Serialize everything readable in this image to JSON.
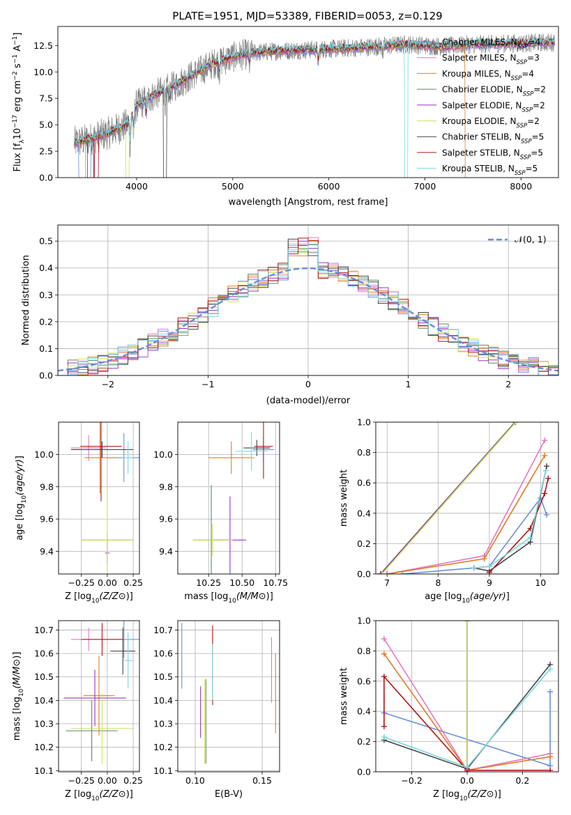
{
  "figure_title": "PLATE=1951, MJD=53389, FIBERID=0053, z=0.129",
  "colors": {
    "Chabrier MILES": "#6a8fd8",
    "Salpeter MILES": "#e377c2",
    "Kroupa MILES": "#e07b25",
    "Chabrier ELODIE": "#5a8a5a",
    "Salpeter ELODIE": "#9932cc",
    "Kroupa ELODIE": "#d2e05a",
    "Chabrier STELIB": "#444444",
    "Salpeter STELIB": "#b01515",
    "Kroupa STELIB": "#78d8e0",
    "data": "#808080"
  },
  "legend_spectrum": [
    {
      "model": "Chabrier MILES",
      "nssp": "4"
    },
    {
      "model": "Salpeter MILES",
      "nssp": "3"
    },
    {
      "model": "Kroupa MILES",
      "nssp": "4"
    },
    {
      "model": "Chabrier ELODIE",
      "nssp": "2"
    },
    {
      "model": "Salpeter ELODIE",
      "nssp": "2"
    },
    {
      "model": "Kroupa ELODIE",
      "nssp": "2"
    },
    {
      "model": "Chabrier STELIB",
      "nssp": "5"
    },
    {
      "model": "Salpeter STELIB",
      "nssp": "5"
    },
    {
      "model": "Kroupa STELIB",
      "nssp": "5"
    }
  ],
  "chart_data": [
    {
      "id": "spectrum",
      "type": "line",
      "xlabel": "wavelength [Angstrom, rest frame]",
      "ylabel_parts": [
        "Flux [f",
        "λ",
        "10",
        "−17",
        " erg cm",
        "−2",
        " s",
        "−1",
        " A",
        "−1",
        "]"
      ],
      "xlim": [
        3180,
        8390
      ],
      "ylim": [
        0,
        14.3
      ],
      "xticks": [
        4000,
        5000,
        6000,
        7000,
        8000
      ],
      "yticks": [
        0.0,
        2.5,
        5.0,
        7.5,
        10.0,
        12.5
      ],
      "continuum_knots": [
        [
          3350,
          3.3
        ],
        [
          3500,
          3.6
        ],
        [
          3700,
          4.2
        ],
        [
          3900,
          5.0
        ],
        [
          4000,
          6.8
        ],
        [
          4200,
          7.9
        ],
        [
          4400,
          8.7
        ],
        [
          4600,
          9.8
        ],
        [
          4800,
          10.8
        ],
        [
          5000,
          11.4
        ],
        [
          5200,
          11.8
        ],
        [
          5500,
          12.0
        ],
        [
          5800,
          12.1
        ],
        [
          6100,
          12.2
        ],
        [
          6500,
          12.4
        ],
        [
          6800,
          12.6
        ],
        [
          7200,
          12.4
        ],
        [
          7500,
          12.6
        ],
        [
          8000,
          12.7
        ],
        [
          8350,
          12.8
        ]
      ]
    },
    {
      "id": "residuals",
      "type": "histogram",
      "xlabel": "(data-model)/error",
      "ylabel": "Normed distribution",
      "xlim": [
        -2.5,
        2.5
      ],
      "ylim": [
        0,
        0.56
      ],
      "xticks": [
        -2,
        -1,
        0,
        1,
        2
      ],
      "yticks": [
        0.0,
        0.1,
        0.2,
        0.3,
        0.4,
        0.5
      ],
      "bin_width": 0.1,
      "legend": "𝒩(0, 1)",
      "gaussian": {
        "mu": 0,
        "sigma": 1
      }
    },
    {
      "id": "age_vs_Z",
      "type": "scatter",
      "xlabel": "Z [log10(Z/Z⊙)]",
      "ylabel": "age  [log10(age/yr)]",
      "xlim": [
        -0.47,
        0.31
      ],
      "ylim": [
        9.26,
        10.2
      ],
      "xticks": [
        -0.25,
        0.0,
        0.25
      ],
      "yticks": [
        9.4,
        9.6,
        9.8,
        10.0
      ],
      "points": [
        {
          "model": "Chabrier MILES",
          "x": 0.16,
          "y": 9.98,
          "xerr": 0.15,
          "yerr": 0.15
        },
        {
          "model": "Salpeter MILES",
          "x": -0.18,
          "y": 10.04,
          "xerr": 0.17,
          "yerr": 0.08
        },
        {
          "model": "Kroupa MILES",
          "x": -0.07,
          "y": 9.98,
          "xerr": 0.15,
          "yerr": 0.22
        },
        {
          "model": "Chabrier ELODIE",
          "x": 0.0,
          "y": 9.47,
          "xerr": 0.25,
          "yerr": 0.04
        },
        {
          "model": "Salpeter ELODIE",
          "x": 0.0,
          "y": 9.39,
          "xerr": 0.02,
          "yerr": 0.08
        },
        {
          "model": "Kroupa ELODIE",
          "x": 0.0,
          "y": 9.47,
          "xerr": 0.25,
          "yerr": 0.34
        },
        {
          "model": "Chabrier STELIB",
          "x": -0.05,
          "y": 10.03,
          "xerr": 0.3,
          "yerr": 0.05
        },
        {
          "model": "Salpeter STELIB",
          "x": -0.06,
          "y": 10.05,
          "xerr": 0.2,
          "yerr": 0.34
        },
        {
          "model": "Kroupa STELIB",
          "x": 0.2,
          "y": 9.98,
          "xerr": 0.05,
          "yerr": 0.1
        }
      ]
    },
    {
      "id": "age_vs_mass",
      "type": "scatter",
      "xlabel": "mass [log10(M/M⊙)]",
      "ylabel": "",
      "xlim": [
        10.02,
        10.78
      ],
      "ylim": [
        9.26,
        10.2
      ],
      "xticks": [
        10.25,
        10.5,
        10.75
      ],
      "yticks": [
        9.4,
        9.6,
        9.8,
        10.0
      ],
      "points": [
        {
          "model": "Chabrier MILES",
          "x": 10.66,
          "y": 10.03,
          "xerr": 0.08,
          "yerr": 0.08
        },
        {
          "model": "Salpeter MILES",
          "x": 10.66,
          "y": 10.04,
          "xerr": 0.05,
          "yerr": 0.03
        },
        {
          "model": "Kroupa MILES",
          "x": 10.42,
          "y": 9.98,
          "xerr": 0.17,
          "yerr": 0.1
        },
        {
          "model": "Chabrier ELODIE",
          "x": 10.27,
          "y": 9.47,
          "xerr": 0.13,
          "yerr": 0.34
        },
        {
          "model": "Salpeter ELODIE",
          "x": 10.41,
          "y": 9.47,
          "xerr": 0.12,
          "yerr": 0.27
        },
        {
          "model": "Kroupa ELODIE",
          "x": 10.28,
          "y": 9.47,
          "xerr": 0.15,
          "yerr": 0.1
        },
        {
          "model": "Chabrier STELIB",
          "x": 10.61,
          "y": 10.04,
          "xerr": 0.1,
          "yerr": 0.05
        },
        {
          "model": "Salpeter STELIB",
          "x": 10.66,
          "y": 10.05,
          "xerr": 0.07,
          "yerr": 0.2
        },
        {
          "model": "Kroupa STELIB",
          "x": 10.57,
          "y": 10.02,
          "xerr": 0.12,
          "yerr": 0.12
        }
      ]
    },
    {
      "id": "massweight_vs_age",
      "type": "line",
      "xlabel": "age  [log10(age/yr)]",
      "ylabel": "mass weight",
      "xlim": [
        6.78,
        10.35
      ],
      "ylim": [
        0,
        1
      ],
      "xticks": [
        7,
        8,
        9,
        10
      ],
      "yticks": [
        0.0,
        0.2,
        0.4,
        0.6,
        0.8,
        1.0
      ],
      "series": [
        {
          "model": "Chabrier MILES",
          "x": [
            7.3,
            8.7,
            9.0,
            10.0,
            10.12
          ],
          "y": [
            0.0,
            0.04,
            0.05,
            0.5,
            0.39
          ]
        },
        {
          "model": "Salpeter MILES",
          "x": [
            7.0,
            8.9,
            10.08
          ],
          "y": [
            0.0,
            0.12,
            0.88
          ]
        },
        {
          "model": "Kroupa MILES",
          "x": [
            7.0,
            8.9,
            10.08
          ],
          "y": [
            0.0,
            0.1,
            0.78
          ]
        },
        {
          "model": "Chabrier ELODIE",
          "x": [
            6.87,
            9.5
          ],
          "y": [
            0.0,
            1.0
          ]
        },
        {
          "model": "Salpeter ELODIE",
          "x": [
            6.88,
            9.51
          ],
          "y": [
            0.0,
            1.0
          ]
        },
        {
          "model": "Kroupa ELODIE",
          "x": [
            6.9,
            9.52
          ],
          "y": [
            0.0,
            1.0
          ]
        },
        {
          "model": "Chabrier STELIB",
          "x": [
            8.7,
            9.0,
            9.8,
            10.12
          ],
          "y": [
            0.04,
            0.02,
            0.21,
            0.71
          ]
        },
        {
          "model": "Salpeter STELIB",
          "x": [
            9.0,
            9.8,
            10.08,
            10.15
          ],
          "y": [
            0.01,
            0.3,
            0.53,
            0.63
          ]
        },
        {
          "model": "Kroupa STELIB",
          "x": [
            8.7,
            9.0,
            9.8,
            10.1
          ],
          "y": [
            0.04,
            0.05,
            0.24,
            0.68
          ]
        }
      ]
    },
    {
      "id": "mass_vs_Z",
      "type": "scatter",
      "xlabel": "Z [log10(Z/Z⊙)]",
      "ylabel": "mass [log10(M/M⊙)]",
      "xlim": [
        -0.47,
        0.31
      ],
      "ylim": [
        10.095,
        10.74
      ],
      "xticks": [
        -0.25,
        0.0,
        0.25
      ],
      "yticks": [
        10.1,
        10.2,
        10.3,
        10.4,
        10.5,
        10.6,
        10.7
      ],
      "points": [
        {
          "model": "Chabrier MILES",
          "x": 0.16,
          "y": 10.66,
          "xerr": 0.15,
          "yerr": 0.08
        },
        {
          "model": "Salpeter MILES",
          "x": -0.18,
          "y": 10.66,
          "xerr": 0.17,
          "yerr": 0.05
        },
        {
          "model": "Kroupa MILES",
          "x": -0.08,
          "y": 10.42,
          "xerr": 0.15,
          "yerr": 0.17
        },
        {
          "model": "Chabrier ELODIE",
          "x": -0.15,
          "y": 10.27,
          "xerr": 0.25,
          "yerr": 0.13
        },
        {
          "model": "Salpeter ELODIE",
          "x": -0.12,
          "y": 10.41,
          "xerr": 0.3,
          "yerr": 0.12
        },
        {
          "model": "Kroupa ELODIE",
          "x": -0.05,
          "y": 10.28,
          "xerr": 0.3,
          "yerr": 0.15
        },
        {
          "model": "Chabrier STELIB",
          "x": 0.15,
          "y": 10.61,
          "xerr": 0.12,
          "yerr": 0.1
        },
        {
          "model": "Salpeter STELIB",
          "x": -0.05,
          "y": 10.66,
          "xerr": 0.2,
          "yerr": 0.07
        },
        {
          "model": "Kroupa STELIB",
          "x": 0.2,
          "y": 10.57,
          "xerr": 0.05,
          "yerr": 0.12
        }
      ]
    },
    {
      "id": "mass_vs_EBV",
      "type": "scatter",
      "xlabel": "E(B-V)",
      "ylabel": "",
      "xlim": [
        0.087,
        0.163
      ],
      "ylim": [
        10.095,
        10.74
      ],
      "xticks": [
        0.1,
        0.15
      ],
      "yticks": [
        10.1,
        10.2,
        10.3,
        10.4,
        10.5,
        10.6,
        10.7
      ],
      "points": [
        {
          "model": "Chabrier MILES",
          "x": 0.09,
          "y": 10.59,
          "yerr": 0.14
        },
        {
          "model": "Salpeter MILES",
          "x": 0.157,
          "y": 10.53,
          "yerr": 0.14
        },
        {
          "model": "Kroupa MILES",
          "x": 0.16,
          "y": 10.43,
          "yerr": 0.17
        },
        {
          "model": "Chabrier ELODIE",
          "x": 0.108,
          "y": 10.31,
          "yerr": 0.18
        },
        {
          "model": "Salpeter ELODIE",
          "x": 0.104,
          "y": 10.35,
          "yerr": 0.11
        },
        {
          "model": "Kroupa ELODIE",
          "x": 0.107,
          "y": 10.31,
          "yerr": 0.18
        },
        {
          "model": "Chabrier STELIB",
          "x": 0.113,
          "y": 10.55,
          "yerr": 0.12
        },
        {
          "model": "Salpeter STELIB",
          "x": 0.113,
          "y": 10.55,
          "yerr": 0.17
        },
        {
          "model": "Kroupa STELIB",
          "x": 0.113,
          "y": 10.52,
          "yerr": 0.12
        }
      ]
    },
    {
      "id": "massweight_vs_Z",
      "type": "line",
      "xlabel": "Z [log10(Z/Z⊙)]",
      "ylabel": "mass weight",
      "xlim": [
        -0.33,
        0.33
      ],
      "ylim": [
        0,
        1
      ],
      "xticks": [
        -0.2,
        0.0,
        0.2
      ],
      "yticks": [
        0.0,
        0.2,
        0.4,
        0.6,
        0.8,
        1.0
      ],
      "series": [
        {
          "model": "Chabrier MILES",
          "x": [
            -0.3,
            0.3,
            0.3
          ],
          "y": [
            0.39,
            0.04,
            0.53
          ]
        },
        {
          "model": "Salpeter MILES",
          "x": [
            -0.3,
            0.0,
            0.3
          ],
          "y": [
            0.88,
            0.01,
            0.12
          ]
        },
        {
          "model": "Kroupa MILES",
          "x": [
            -0.3,
            0.0,
            0.3
          ],
          "y": [
            0.78,
            0.01,
            0.1
          ]
        },
        {
          "model": "Chabrier ELODIE",
          "x": [
            0.0,
            0.0
          ],
          "y": [
            0.0,
            1.0
          ]
        },
        {
          "model": "Salpeter ELODIE",
          "x": [
            0.0,
            0.0
          ],
          "y": [
            0.0,
            1.0
          ]
        },
        {
          "model": "Kroupa ELODIE",
          "x": [
            0.0,
            0.0
          ],
          "y": [
            0.02,
            1.0
          ]
        },
        {
          "model": "Chabrier STELIB",
          "x": [
            -0.3,
            0.0,
            0.3
          ],
          "y": [
            0.21,
            0.02,
            0.71
          ]
        },
        {
          "model": "Salpeter STELIB",
          "x": [
            -0.3,
            -0.3,
            0.0,
            0.3
          ],
          "y": [
            0.3,
            0.63,
            0.01,
            0.01
          ]
        },
        {
          "model": "Kroupa STELIB",
          "x": [
            -0.3,
            0.0,
            0.3
          ],
          "y": [
            0.23,
            0.03,
            0.68
          ]
        }
      ]
    }
  ]
}
